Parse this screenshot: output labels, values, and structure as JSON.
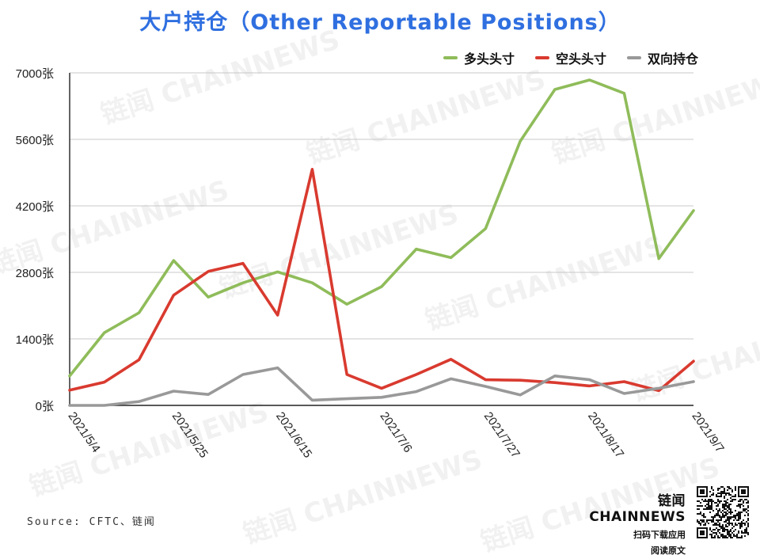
{
  "title": "大户持仓（Other Reportable Positions）",
  "legend": {
    "items": [
      {
        "label": "多头头寸",
        "color": "#8fbc5a"
      },
      {
        "label": "空头头寸",
        "color": "#d93a2f"
      },
      {
        "label": "双向持仓",
        "color": "#999999"
      }
    ]
  },
  "source": "Source: CFTC、链闻",
  "brand": {
    "name": "链闻 CHAINNEWS",
    "line1": "扫码下载应用",
    "line2": "阅读原文"
  },
  "watermark": "链闻 CHAINNEWS",
  "chart_data": {
    "type": "line",
    "title": "大户持仓（Other Reportable Positions）",
    "x": [
      "2021/5/4",
      "2021/5/11",
      "2021/5/18",
      "2021/5/25",
      "2021/6/1",
      "2021/6/8",
      "2021/6/15",
      "2021/6/22",
      "2021/6/29",
      "2021/7/6",
      "2021/7/13",
      "2021/7/20",
      "2021/7/27",
      "2021/8/3",
      "2021/8/10",
      "2021/8/17",
      "2021/8/24",
      "2021/8/31",
      "2021/9/7"
    ],
    "x_tick_labels": [
      "2021/5/4",
      "2021/5/25",
      "2021/6/15",
      "2021/7/6",
      "2021/7/27",
      "2021/8/17",
      "2021/9/7"
    ],
    "y_tick_labels": [
      "0张",
      "1400张",
      "2800张",
      "4200张",
      "5600张",
      "7000张"
    ],
    "ylim": [
      0,
      7000
    ],
    "grid": true,
    "legend_position": "top-right",
    "series": [
      {
        "name": "多头头寸",
        "color": "#8fbc5a",
        "values": [
          620,
          1530,
          1950,
          3050,
          2280,
          2580,
          2810,
          2580,
          2130,
          2500,
          3290,
          3110,
          3720,
          5560,
          6650,
          6850,
          6570,
          3090,
          4100
        ]
      },
      {
        "name": "空头头寸",
        "color": "#d93a2f",
        "values": [
          320,
          490,
          960,
          2320,
          2820,
          2990,
          1900,
          4970,
          650,
          360,
          650,
          970,
          540,
          530,
          480,
          410,
          500,
          310,
          930
        ]
      },
      {
        "name": "双向持仓",
        "color": "#999999",
        "values": [
          0,
          0,
          80,
          300,
          230,
          650,
          790,
          110,
          140,
          170,
          290,
          560,
          400,
          220,
          620,
          540,
          250,
          360,
          500
        ]
      }
    ]
  }
}
